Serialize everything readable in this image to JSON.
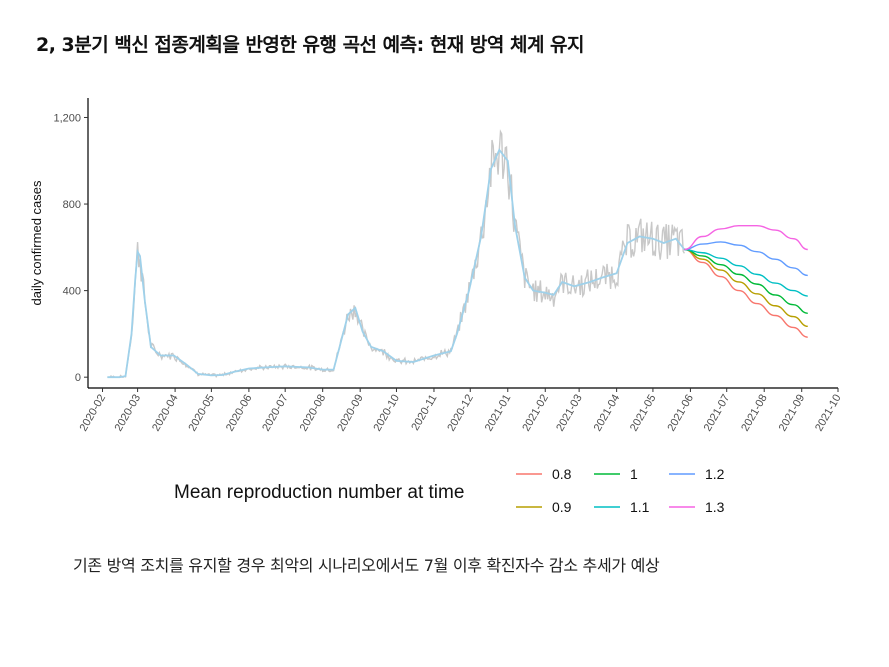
{
  "title": "2, 3분기 백신 접종계획을 반영한 유행 곡선 예측: 현재 방역 체계 유지",
  "caption": "기존 방역 조치를 유지할 경우 최악의 시나리오에서도 7월 이후 확진자수 감소 추세가 예상",
  "chart_data": {
    "type": "line",
    "title": "",
    "xlabel": "",
    "ylabel": "daily confirmed cases",
    "x_ticks": [
      "2020-02",
      "2020-03",
      "2020-04",
      "2020-05",
      "2020-06",
      "2020-07",
      "2020-08",
      "2020-09",
      "2020-10",
      "2020-11",
      "2020-12",
      "2021-01",
      "2021-02",
      "2021-03",
      "2021-04",
      "2021-05",
      "2021-06",
      "2021-07",
      "2021-08",
      "2021-09",
      "2021-10"
    ],
    "y_ticks": [
      0,
      400,
      800,
      1200
    ],
    "y_tick_labels": [
      "0",
      "400",
      "800",
      "1,200"
    ],
    "ylim": [
      -50,
      1290
    ],
    "grid": false,
    "observed": {
      "raw_color": "#c8c8c8",
      "smooth_color": "#9fd1ea",
      "points": [
        [
          "2020-02-05",
          0
        ],
        [
          "2020-02-15",
          0
        ],
        [
          "2020-02-20",
          5
        ],
        [
          "2020-02-25",
          200
        ],
        [
          "2020-02-28",
          450
        ],
        [
          "2020-03-01",
          580
        ],
        [
          "2020-03-03",
          560
        ],
        [
          "2020-03-07",
          350
        ],
        [
          "2020-03-12",
          140
        ],
        [
          "2020-03-20",
          100
        ],
        [
          "2020-03-31",
          100
        ],
        [
          "2020-04-10",
          60
        ],
        [
          "2020-04-20",
          15
        ],
        [
          "2020-05-01",
          8
        ],
        [
          "2020-05-10",
          10
        ],
        [
          "2020-05-20",
          25
        ],
        [
          "2020-06-01",
          40
        ],
        [
          "2020-06-15",
          45
        ],
        [
          "2020-07-01",
          50
        ],
        [
          "2020-07-20",
          45
        ],
        [
          "2020-08-01",
          35
        ],
        [
          "2020-08-10",
          35
        ],
        [
          "2020-08-15",
          140
        ],
        [
          "2020-08-22",
          290
        ],
        [
          "2020-08-28",
          320
        ],
        [
          "2020-09-03",
          210
        ],
        [
          "2020-09-10",
          140
        ],
        [
          "2020-09-20",
          120
        ],
        [
          "2020-10-01",
          75
        ],
        [
          "2020-10-15",
          70
        ],
        [
          "2020-11-01",
          100
        ],
        [
          "2020-11-15",
          120
        ],
        [
          "2020-11-20",
          200
        ],
        [
          "2020-11-30",
          400
        ],
        [
          "2020-12-10",
          650
        ],
        [
          "2020-12-18",
          960
        ],
        [
          "2020-12-25",
          1050
        ],
        [
          "2021-01-01",
          1000
        ],
        [
          "2021-01-07",
          700
        ],
        [
          "2021-01-15",
          460
        ],
        [
          "2021-01-22",
          400
        ],
        [
          "2021-02-01",
          390
        ],
        [
          "2021-02-08",
          380
        ],
        [
          "2021-02-15",
          440
        ],
        [
          "2021-02-25",
          420
        ],
        [
          "2021-03-10",
          440
        ],
        [
          "2021-03-20",
          460
        ],
        [
          "2021-04-01",
          480
        ],
        [
          "2021-04-10",
          620
        ],
        [
          "2021-04-20",
          650
        ],
        [
          "2021-05-01",
          640
        ],
        [
          "2021-05-10",
          620
        ],
        [
          "2021-05-20",
          640
        ],
        [
          "2021-05-27",
          590
        ]
      ]
    },
    "projection_x": [
      "2021-05-27",
      "2021-06-11",
      "2021-06-26",
      "2021-07-11",
      "2021-07-26",
      "2021-08-10",
      "2021-08-25",
      "2021-09-06"
    ],
    "series": [
      {
        "name": "0.8",
        "color": "#F8766D",
        "values": [
          590,
          530,
          465,
          400,
          340,
          285,
          230,
          185
        ]
      },
      {
        "name": "0.9",
        "color": "#B79F00",
        "values": [
          590,
          545,
          495,
          440,
          385,
          330,
          280,
          235
        ]
      },
      {
        "name": "1",
        "color": "#00BA38",
        "values": [
          590,
          560,
          520,
          475,
          430,
          380,
          335,
          295
        ]
      },
      {
        "name": "1.1",
        "color": "#00BFC4",
        "values": [
          590,
          575,
          550,
          515,
          475,
          435,
          400,
          375
        ]
      },
      {
        "name": "1.2",
        "color": "#619CFF",
        "values": [
          590,
          615,
          625,
          610,
          580,
          545,
          505,
          470
        ]
      },
      {
        "name": "1.3",
        "color": "#F564E3",
        "values": [
          590,
          650,
          685,
          700,
          700,
          680,
          640,
          590
        ]
      }
    ],
    "legend": {
      "title": "Mean reproduction number at time",
      "position": "bottom",
      "columns": [
        [
          "0.8",
          "0.9"
        ],
        [
          "1",
          "1.1"
        ],
        [
          "1.2",
          "1.3"
        ]
      ]
    }
  }
}
